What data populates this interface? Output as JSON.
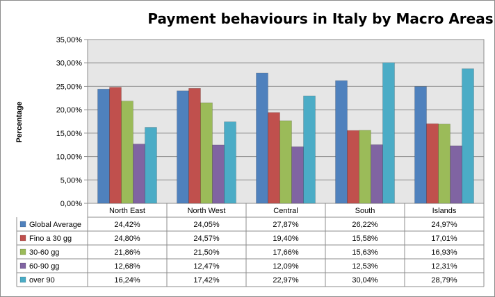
{
  "chart_data": {
    "type": "bar",
    "title": "Payment behaviours in Italy by Macro Areas",
    "ylabel": "Percentage",
    "ylim": [
      0,
      35
    ],
    "ytick_step": 5,
    "ytick_labels": [
      "0,00%",
      "5,00%",
      "10,00%",
      "15,00%",
      "20,00%",
      "25,00%",
      "30,00%",
      "35,00%"
    ],
    "grid": true,
    "legend": "data-table-left",
    "categories": [
      "North East",
      "North West",
      "Central",
      "South",
      "Islands"
    ],
    "series": [
      {
        "name": "Global Average",
        "color": "#4f81bd",
        "values": [
          24.42,
          24.05,
          27.87,
          26.22,
          24.97
        ],
        "labels": [
          "24,42%",
          "24,05%",
          "27,87%",
          "26,22%",
          "24,97%"
        ]
      },
      {
        "name": "Fino a 30 gg",
        "color": "#c0504d",
        "values": [
          24.8,
          24.57,
          19.4,
          15.58,
          17.01
        ],
        "labels": [
          "24,80%",
          "24,57%",
          "19,40%",
          "15,58%",
          "17,01%"
        ]
      },
      {
        "name": "30-60 gg",
        "color": "#9bbb59",
        "values": [
          21.86,
          21.5,
          17.66,
          15.63,
          16.93
        ],
        "labels": [
          "21,86%",
          "21,50%",
          "17,66%",
          "15,63%",
          "16,93%"
        ]
      },
      {
        "name": "60-90 gg",
        "color": "#8064a2",
        "values": [
          12.68,
          12.47,
          12.09,
          12.53,
          12.31
        ],
        "labels": [
          "12,68%",
          "12,47%",
          "12,09%",
          "12,53%",
          "12,31%"
        ]
      },
      {
        "name": "over 90",
        "color": "#4bacc6",
        "values": [
          16.24,
          17.42,
          22.97,
          30.04,
          28.79
        ],
        "labels": [
          "16,24%",
          "17,42%",
          "22,97%",
          "30,04%",
          "28,79%"
        ]
      }
    ]
  }
}
